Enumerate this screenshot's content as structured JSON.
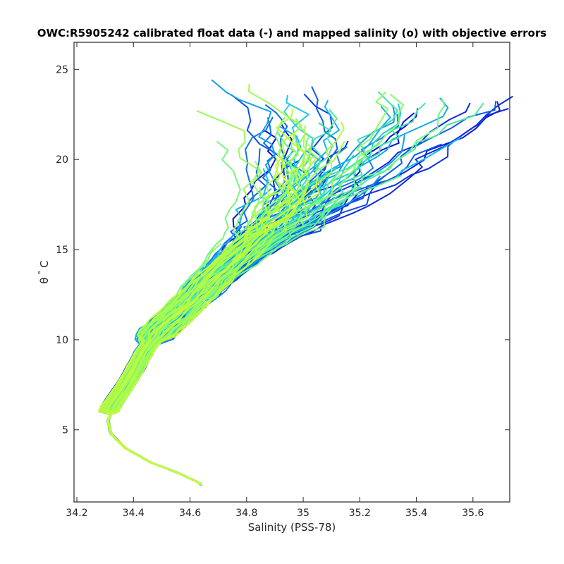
{
  "chart_data": {
    "type": "line",
    "title": "OWC:R5905242 calibrated float data (-) and mapped salinity (o) with objective errors",
    "xlabel": "Salinity (PSS-78)",
    "ylabel_symbol": "θ",
    "ylabel_degree": "°",
    "ylabel_unit": "C",
    "xlim": [
      34.19,
      35.73
    ],
    "ylim": [
      1.0,
      26.5
    ],
    "xticks": [
      34.2,
      34.4,
      34.6,
      34.8,
      35.0,
      35.2,
      35.4,
      35.6
    ],
    "xtick_labels": [
      "34.2",
      "34.4",
      "34.6",
      "34.8",
      "35",
      "35.2",
      "35.4",
      "35.6"
    ],
    "yticks": [
      5,
      10,
      15,
      20,
      25
    ],
    "ytick_labels": [
      "5",
      "10",
      "15",
      "20",
      "25"
    ],
    "grid": false,
    "legend": "none",
    "colormap": "parula",
    "profile_count": 120,
    "backbone": {
      "theta": [
        2.0,
        2.6,
        3.2,
        4.0,
        4.8,
        5.5,
        6.3,
        7.2,
        8.2,
        9.4,
        10.6,
        12.0,
        13.5,
        15.0,
        16.5,
        18.0,
        19.5,
        21.0,
        22.5
      ],
      "salinity": [
        34.63,
        34.55,
        34.45,
        34.36,
        34.31,
        34.3,
        34.32,
        34.36,
        34.4,
        34.44,
        34.5,
        34.6,
        34.7,
        34.82,
        34.95,
        35.06,
        35.15,
        35.22,
        35.3
      ]
    }
  },
  "colors": {
    "early_profiles": "#0a0ad6",
    "mid_profiles": "#10c4e8",
    "late_profiles": "#c8fa32",
    "axes": "#262626",
    "background": "#ffffff"
  }
}
